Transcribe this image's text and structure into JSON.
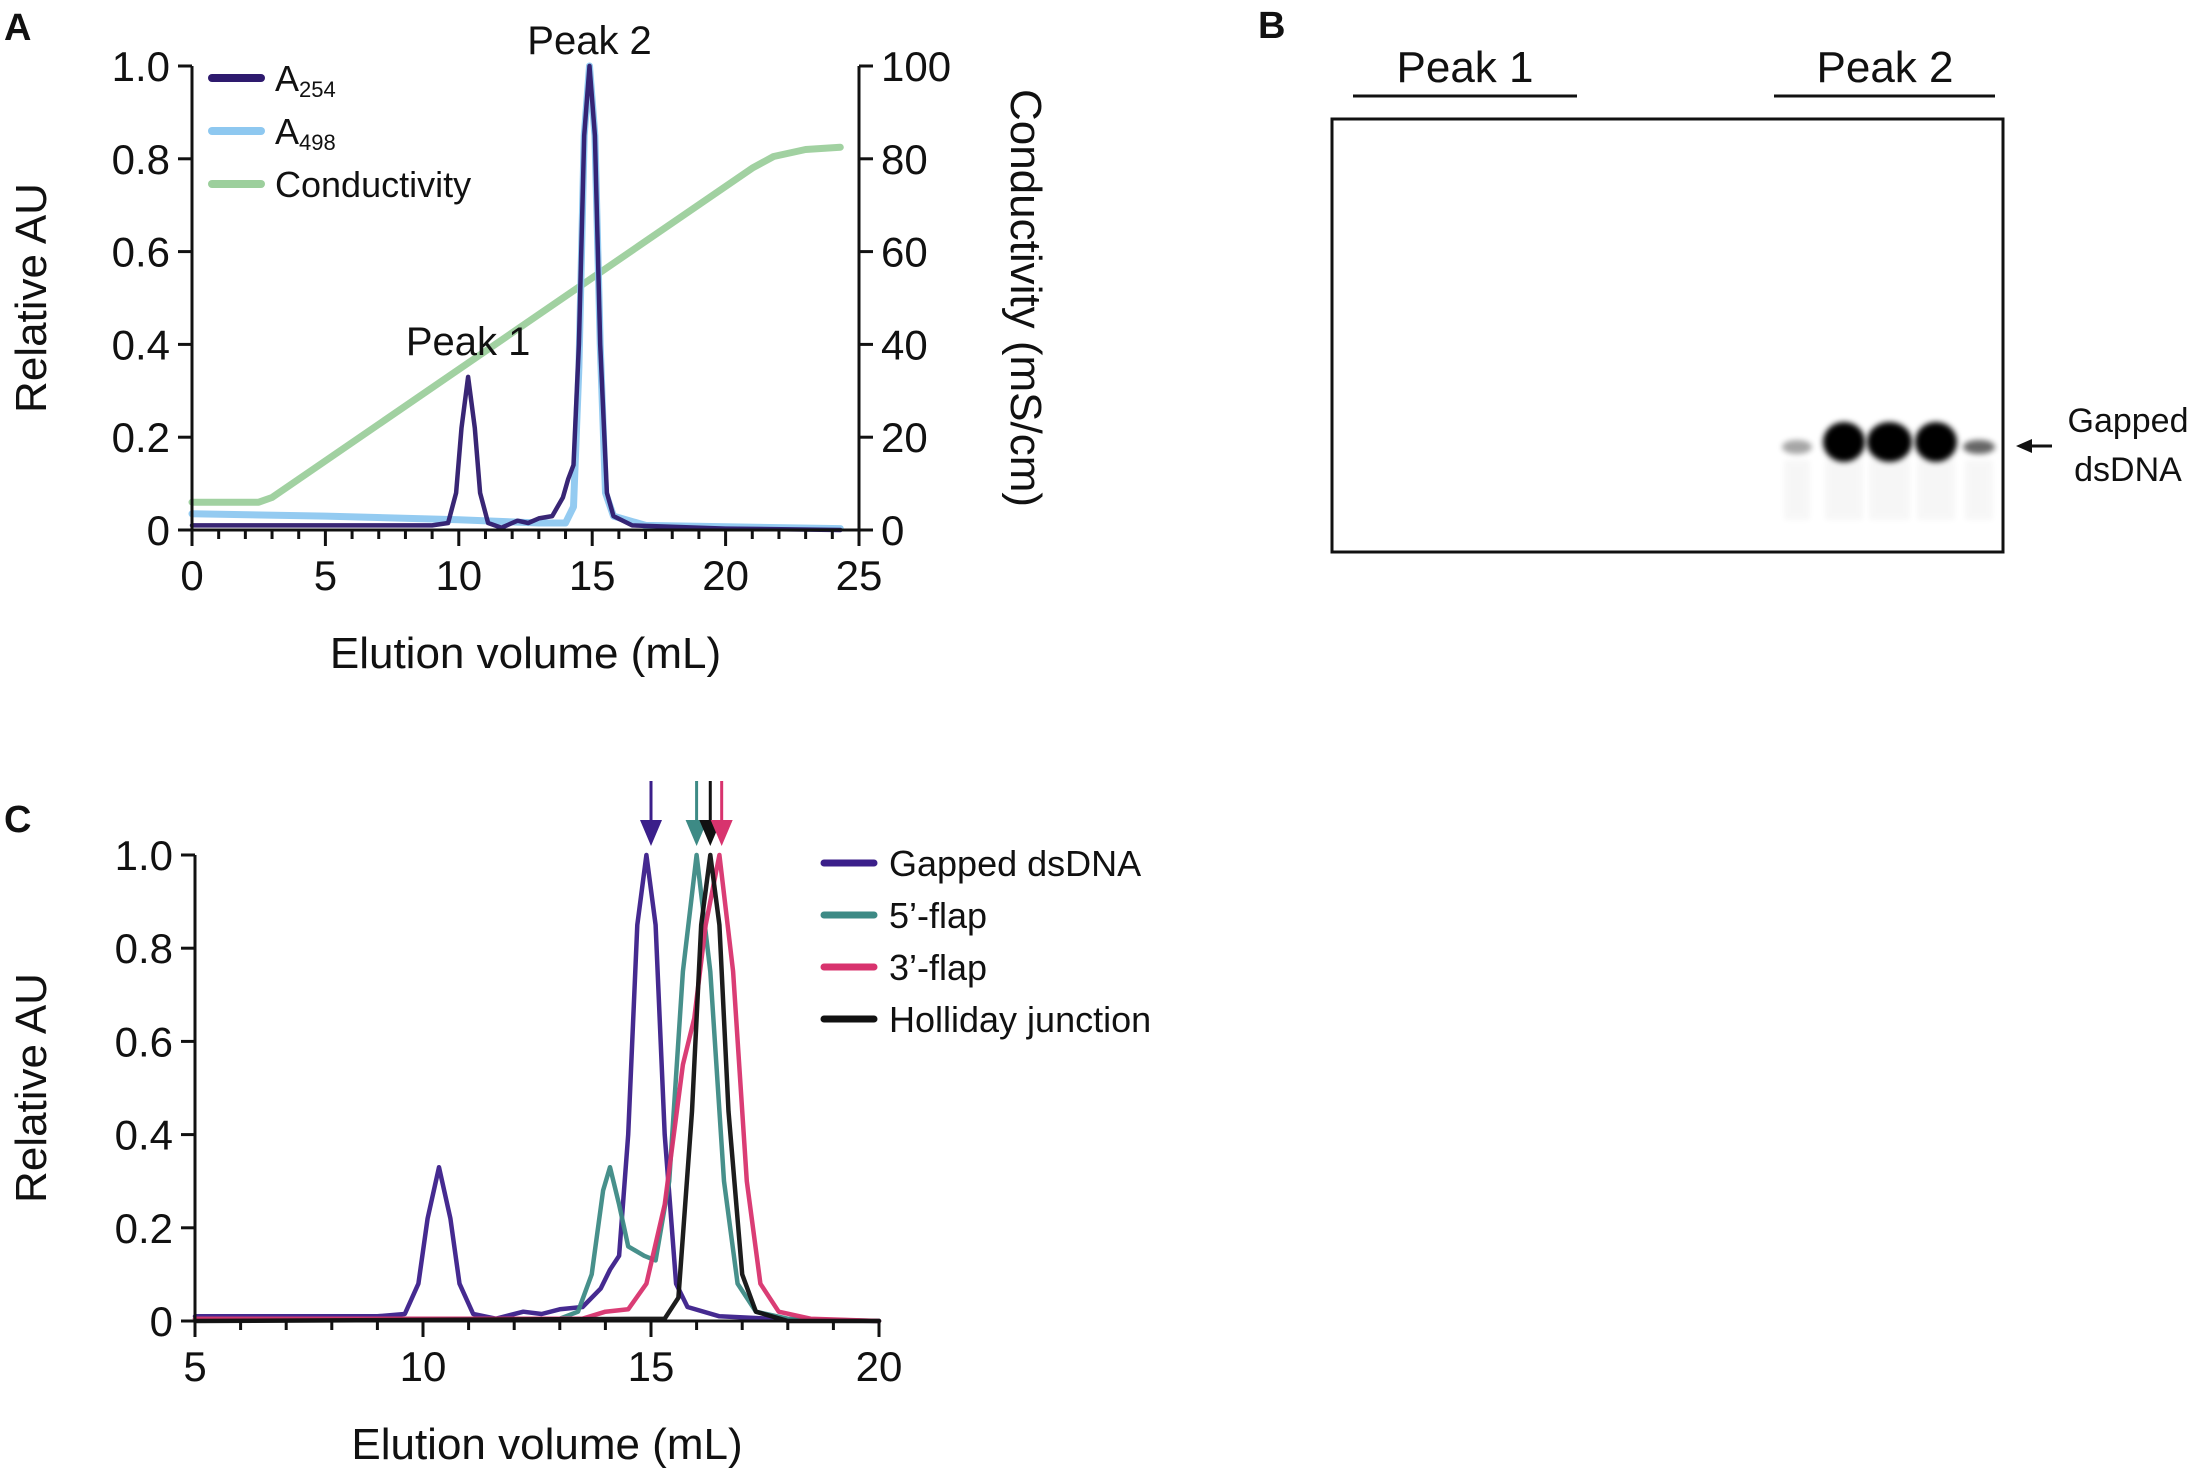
{
  "panel_labels": {
    "a": "A",
    "b": "B",
    "c": "C"
  },
  "chart_data": [
    {
      "id": "A",
      "type": "line",
      "xlabel": "Elution volume (mL)",
      "ylabel": "Relative AU",
      "y2label": "Conductivity (mS/cm)",
      "xlim": [
        0,
        25
      ],
      "ylim": [
        0,
        1.0
      ],
      "y2lim": [
        0,
        100
      ],
      "xticks": [
        "0",
        "5",
        "10",
        "15",
        "20",
        "25"
      ],
      "yticks": [
        "0",
        "0.2",
        "0.4",
        "0.6",
        "0.8",
        "1.0"
      ],
      "y2ticks": [
        "0",
        "20",
        "40",
        "60",
        "80",
        "100"
      ],
      "legend_position": "top-left",
      "annotations": [
        {
          "text": "Peak 1",
          "x": 10.35,
          "y": 0.33
        },
        {
          "text": "Peak 2",
          "x": 14.9,
          "y": 1.0
        }
      ],
      "series": [
        {
          "name": "A",
          "sub": "254",
          "color": "#2e1a6e",
          "axis": "left",
          "x": [
            0,
            5,
            9,
            9.6,
            9.9,
            10.1,
            10.35,
            10.6,
            10.8,
            11.1,
            11.6,
            12.2,
            12.6,
            13,
            13.5,
            13.9,
            14.1,
            14.3,
            14.5,
            14.7,
            14.9,
            15.1,
            15.3,
            15.55,
            15.8,
            16.5,
            20,
            24.3
          ],
          "y": [
            0.01,
            0.01,
            0.01,
            0.015,
            0.08,
            0.22,
            0.33,
            0.22,
            0.08,
            0.015,
            0.005,
            0.02,
            0.015,
            0.025,
            0.03,
            0.07,
            0.11,
            0.14,
            0.4,
            0.85,
            1.0,
            0.85,
            0.4,
            0.08,
            0.03,
            0.01,
            0.003,
            0
          ]
        },
        {
          "name": "A",
          "sub": "498",
          "color": "#8ec8f0",
          "axis": "left",
          "x": [
            0,
            5,
            10,
            13,
            14,
            14.3,
            14.5,
            14.7,
            14.9,
            15.1,
            15.3,
            15.5,
            15.8,
            17,
            24.3
          ],
          "y": [
            0.035,
            0.03,
            0.022,
            0.015,
            0.015,
            0.05,
            0.35,
            0.85,
            1.0,
            0.85,
            0.4,
            0.08,
            0.03,
            0.01,
            0.003
          ]
        },
        {
          "name": "Conductivity",
          "sub": "",
          "color": "#9ccf9c",
          "axis": "right",
          "x": [
            0,
            2.5,
            3,
            21,
            21.8,
            23,
            24.3
          ],
          "y": [
            6,
            6,
            7,
            78,
            80.5,
            82,
            82.5
          ]
        }
      ]
    },
    {
      "id": "C",
      "type": "line",
      "xlabel": "Elution volume (mL)",
      "ylabel": "Relative AU",
      "xlim": [
        5,
        20
      ],
      "ylim": [
        0,
        1.0
      ],
      "xticks": [
        "5",
        "10",
        "15",
        "20"
      ],
      "yticks": [
        "0",
        "0.2",
        "0.4",
        "0.6",
        "0.8",
        "1.0"
      ],
      "legend_position": "right",
      "peak_arrows": [
        {
          "x": 15.0,
          "color": "#3b1f8a"
        },
        {
          "x": 16.0,
          "color": "#3d8a85"
        },
        {
          "x": 16.3,
          "color": "#111111"
        },
        {
          "x": 16.55,
          "color": "#d8336e"
        }
      ],
      "series": [
        {
          "name": "Gapped dsDNA",
          "color": "#3b1f8a",
          "x": [
            5,
            9,
            9.6,
            9.9,
            10.1,
            10.35,
            10.6,
            10.8,
            11.1,
            11.6,
            12.2,
            12.6,
            13,
            13.5,
            13.9,
            14.1,
            14.3,
            14.5,
            14.7,
            14.9,
            15.1,
            15.3,
            15.55,
            15.8,
            16.5,
            18,
            20
          ],
          "y": [
            0.01,
            0.01,
            0.015,
            0.08,
            0.22,
            0.33,
            0.22,
            0.08,
            0.015,
            0.005,
            0.02,
            0.015,
            0.025,
            0.03,
            0.07,
            0.11,
            0.14,
            0.4,
            0.85,
            1.0,
            0.85,
            0.4,
            0.08,
            0.03,
            0.01,
            0.003,
            0
          ]
        },
        {
          "name": "5’-flap",
          "color": "#3d8a85",
          "x": [
            5,
            13,
            13.4,
            13.7,
            13.95,
            14.1,
            14.3,
            14.5,
            14.85,
            15.1,
            15.4,
            15.7,
            16.0,
            16.3,
            16.6,
            16.9,
            17.3,
            18,
            20
          ],
          "y": [
            0.005,
            0.005,
            0.02,
            0.1,
            0.28,
            0.33,
            0.25,
            0.16,
            0.14,
            0.13,
            0.3,
            0.75,
            1.0,
            0.75,
            0.3,
            0.08,
            0.02,
            0.005,
            0
          ]
        },
        {
          "name": "3’-flap",
          "color": "#d8336e",
          "x": [
            5,
            13.5,
            14,
            14.5,
            14.9,
            15.3,
            15.7,
            15.95,
            16.2,
            16.5,
            16.8,
            17.1,
            17.4,
            17.8,
            18.5,
            20
          ],
          "y": [
            0.005,
            0.005,
            0.02,
            0.025,
            0.08,
            0.25,
            0.55,
            0.65,
            0.85,
            1.0,
            0.75,
            0.3,
            0.08,
            0.02,
            0.005,
            0
          ]
        },
        {
          "name": "Holliday junction",
          "color": "#111111",
          "x": [
            5,
            15.3,
            15.6,
            15.9,
            16.1,
            16.3,
            16.5,
            16.7,
            17.0,
            17.3,
            18,
            20
          ],
          "y": [
            0,
            0.005,
            0.05,
            0.45,
            0.85,
            1.0,
            0.85,
            0.45,
            0.1,
            0.02,
            0,
            0
          ]
        }
      ]
    }
  ],
  "gel": {
    "groups": [
      "Peak 1",
      "Peak 2"
    ],
    "band_label_line1": "Gapped",
    "band_label_line2": "dsDNA",
    "peak2_band_intensity": [
      0.35,
      1.0,
      1.0,
      1.0,
      0.6
    ]
  }
}
